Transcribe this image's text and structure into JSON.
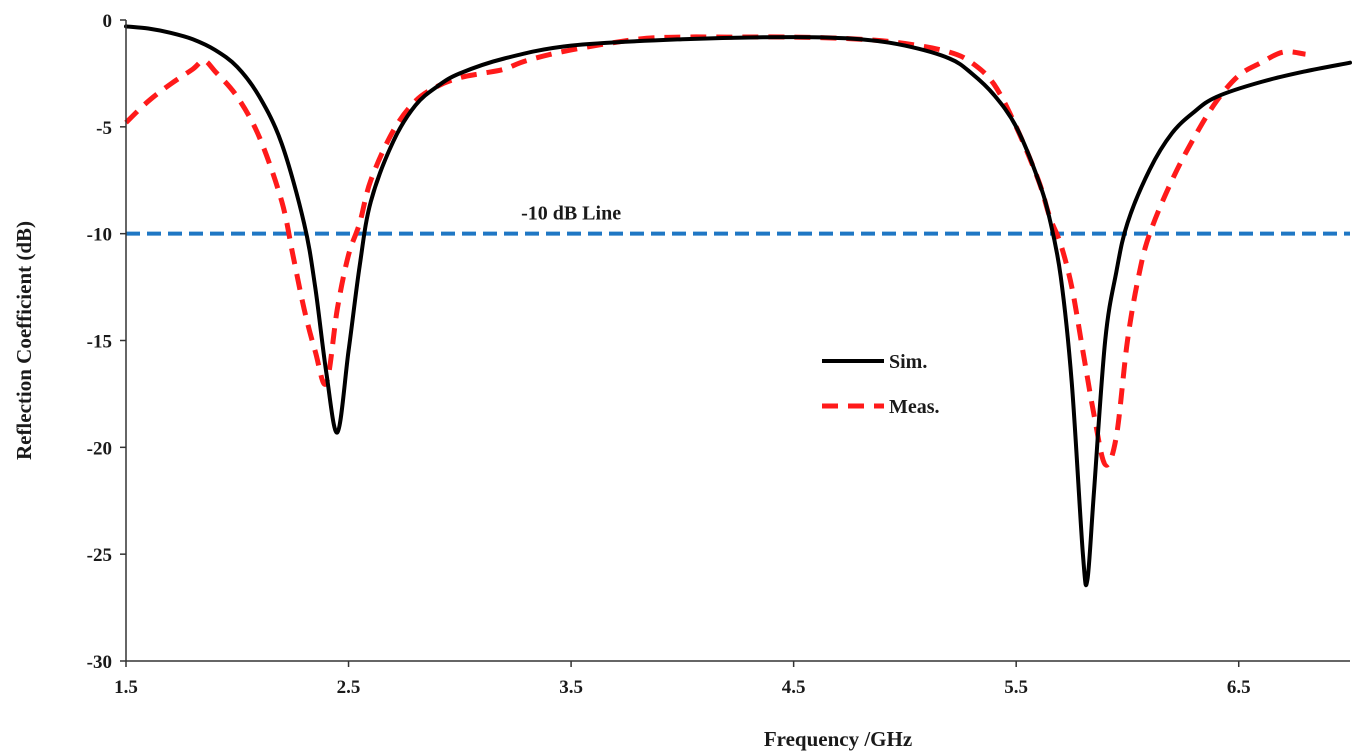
{
  "chart_data": {
    "type": "line",
    "xlabel": "Frequency /GHz",
    "ylabel": "Reflection Coefficient (dB)",
    "xlim": [
      1.5,
      7.0
    ],
    "ylim": [
      -30,
      0
    ],
    "xticks": [
      "1.5",
      "2.5",
      "3.5",
      "4.5",
      "5.5",
      "6.5"
    ],
    "yticks": [
      "0",
      "-5",
      "-10",
      "-15",
      "-20",
      "-25",
      "-30"
    ],
    "grid": false,
    "legend_position": "center-right",
    "reference_line": {
      "y": -10,
      "label": "-10 dB Line",
      "color": "#1f77c4"
    },
    "series": [
      {
        "name": "Sim.",
        "color": "#000000",
        "style": "solid",
        "x": [
          1.5,
          1.6,
          1.7,
          1.8,
          1.9,
          2.0,
          2.1,
          2.2,
          2.3,
          2.35,
          2.4,
          2.45,
          2.5,
          2.55,
          2.6,
          2.7,
          2.8,
          2.9,
          3.0,
          3.2,
          3.5,
          4.0,
          4.5,
          4.8,
          5.0,
          5.2,
          5.3,
          5.4,
          5.5,
          5.6,
          5.65,
          5.7,
          5.75,
          5.8,
          5.82,
          5.85,
          5.9,
          5.95,
          6.0,
          6.1,
          6.2,
          6.3,
          6.4,
          6.6,
          6.8,
          7.0
        ],
        "y": [
          -0.3,
          -0.4,
          -0.6,
          -0.9,
          -1.4,
          -2.2,
          -3.6,
          -5.8,
          -9.5,
          -12.5,
          -16.5,
          -19.3,
          -15.5,
          -11.5,
          -8.5,
          -5.7,
          -4.0,
          -3.1,
          -2.5,
          -1.8,
          -1.2,
          -0.9,
          -0.8,
          -0.9,
          -1.2,
          -1.8,
          -2.5,
          -3.5,
          -5.0,
          -7.5,
          -9.3,
          -12.0,
          -17.0,
          -25.0,
          -26.2,
          -22.0,
          -15.0,
          -11.8,
          -9.5,
          -7.0,
          -5.3,
          -4.3,
          -3.6,
          -2.9,
          -2.4,
          -2.0
        ]
      },
      {
        "name": "Meas.",
        "color": "#ff1a1a",
        "style": "dashed",
        "x": [
          1.5,
          1.6,
          1.7,
          1.8,
          1.85,
          1.9,
          2.0,
          2.1,
          2.2,
          2.25,
          2.3,
          2.35,
          2.4,
          2.45,
          2.5,
          2.55,
          2.6,
          2.7,
          2.8,
          2.9,
          3.0,
          3.1,
          3.2,
          3.3,
          3.5,
          3.8,
          4.0,
          4.2,
          4.5,
          4.8,
          5.0,
          5.2,
          5.3,
          5.4,
          5.5,
          5.6,
          5.65,
          5.7,
          5.75,
          5.8,
          5.85,
          5.9,
          5.95,
          6.0,
          6.05,
          6.1,
          6.2,
          6.3,
          6.4,
          6.5,
          6.6,
          6.7,
          6.8
        ],
        "y": [
          -4.8,
          -3.8,
          -3.0,
          -2.3,
          -1.9,
          -2.4,
          -3.6,
          -5.5,
          -8.5,
          -11.0,
          -13.5,
          -15.5,
          -17.0,
          -13.5,
          -11.0,
          -9.5,
          -7.5,
          -5.2,
          -3.8,
          -3.1,
          -2.7,
          -2.5,
          -2.3,
          -1.9,
          -1.4,
          -0.9,
          -0.8,
          -0.8,
          -0.8,
          -0.9,
          -1.1,
          -1.5,
          -2.0,
          -3.0,
          -5.0,
          -7.5,
          -9.2,
          -10.5,
          -12.5,
          -15.5,
          -18.5,
          -20.8,
          -19.5,
          -15.0,
          -12.0,
          -10.0,
          -7.5,
          -5.5,
          -3.8,
          -2.6,
          -2.0,
          -1.5,
          -1.6
        ]
      }
    ]
  }
}
